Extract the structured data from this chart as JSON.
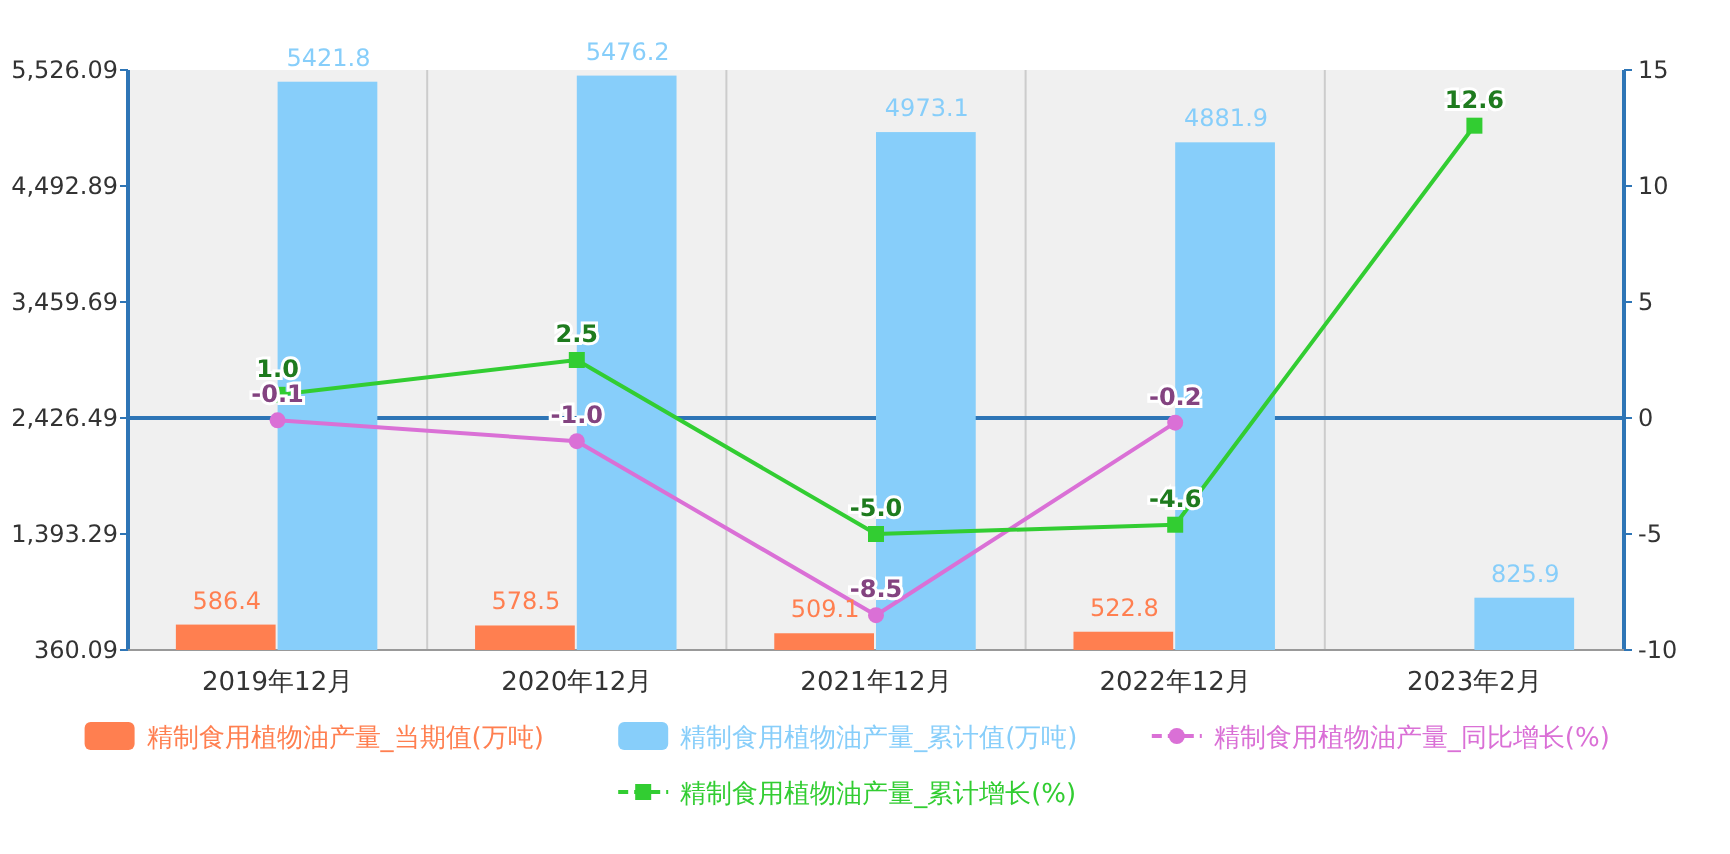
{
  "chart_data": {
    "type": "bar",
    "categories": [
      "2019年12月",
      "2020年12月",
      "2021年12月",
      "2022年12月",
      "2023年2月"
    ],
    "series": [
      {
        "name": "精制食用植物油产量_当期值(万吨)",
        "color": "#ff7f50",
        "values": [
          586.4,
          578.5,
          509.1,
          522.8,
          null
        ],
        "value_labels": [
          "586.4",
          "578.5",
          "509.1",
          "522.8",
          null
        ]
      },
      {
        "name": "精制食用植物油产量_累计值(万吨)",
        "color": "#87cefa",
        "values": [
          5421.8,
          5476.2,
          4973.1,
          4881.9,
          825.9
        ],
        "value_labels": [
          "5421.8",
          "5476.2",
          "4973.1",
          "4881.9",
          "825.9"
        ]
      },
      {
        "name": "精制食用植物油产量_同比增长(%)",
        "type": "line",
        "axis": "y2",
        "marker": "circle",
        "color": "#da70d6",
        "values": [
          -0.1,
          -1.0,
          -8.5,
          -0.2,
          null
        ],
        "value_labels": [
          "-0.1",
          "-1.0",
          "-8.5",
          "-0.2",
          null
        ]
      },
      {
        "name": "精制食用植物油产量_累计增长(%)",
        "type": "line",
        "axis": "y2",
        "marker": "square",
        "color": "#32cd32",
        "values": [
          1.0,
          2.5,
          -5.0,
          -4.6,
          12.6
        ],
        "value_labels": [
          "1.0",
          "2.5",
          "-5.0",
          "-4.6",
          "12.6"
        ]
      }
    ],
    "ylim": [
      360.09,
      5526.09
    ],
    "yticks": [
      {
        "value": 360.09,
        "label": "360.09"
      },
      {
        "value": 1393.29,
        "label": "1,393.29"
      },
      {
        "value": 2426.49,
        "label": "2,426.49"
      },
      {
        "value": 3459.69,
        "label": "3,459.69"
      },
      {
        "value": 4492.89,
        "label": "4,492.89"
      },
      {
        "value": 5526.09,
        "label": "5,526.09"
      }
    ],
    "y2lim": [
      -10,
      15
    ],
    "y2ticks": [
      -10,
      -5,
      0,
      5,
      10,
      15
    ],
    "ref_lines": [
      {
        "axis": "y2",
        "value": 0,
        "color": "#2e75b6"
      }
    ],
    "grid": "x",
    "legend": "bottom"
  }
}
